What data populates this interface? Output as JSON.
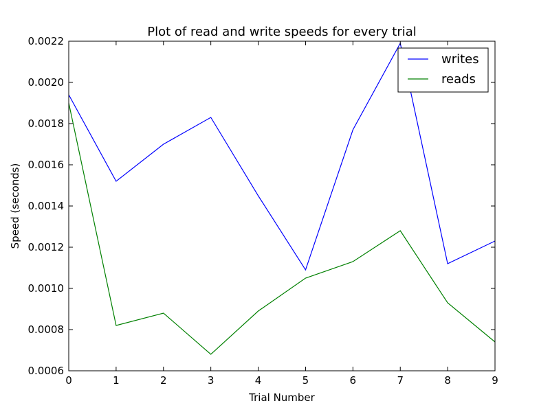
{
  "chart_data": {
    "type": "line",
    "title": "Plot of read and write speeds for every trial",
    "xlabel": "Trial Number",
    "ylabel": "Speed (seconds)",
    "x": [
      0,
      1,
      2,
      3,
      4,
      5,
      6,
      7,
      8,
      9
    ],
    "xlim": [
      0,
      9
    ],
    "ylim": [
      0.0006,
      0.0022
    ],
    "xticks": [
      "0",
      "1",
      "2",
      "3",
      "4",
      "5",
      "6",
      "7",
      "8",
      "9"
    ],
    "yticks": [
      0.0006,
      0.0008,
      0.001,
      0.0012,
      0.0014,
      0.0016,
      0.0018,
      0.002,
      0.0022
    ],
    "ytick_labels": [
      "0.0006",
      "0.0008",
      "0.0010",
      "0.0012",
      "0.0014",
      "0.0016",
      "0.0018",
      "0.0020",
      "0.0022"
    ],
    "grid": false,
    "legend_position": "top-right",
    "series": [
      {
        "name": "writes",
        "color": "#0000ff",
        "values": [
          0.00194,
          0.00152,
          0.0017,
          0.00183,
          0.00145,
          0.00109,
          0.00177,
          0.00219,
          0.00112,
          0.00123
        ]
      },
      {
        "name": "reads",
        "color": "#008000",
        "values": [
          0.0019,
          0.00082,
          0.00088,
          0.00068,
          0.00089,
          0.00105,
          0.00113,
          0.00128,
          0.00093,
          0.00074
        ]
      }
    ]
  }
}
